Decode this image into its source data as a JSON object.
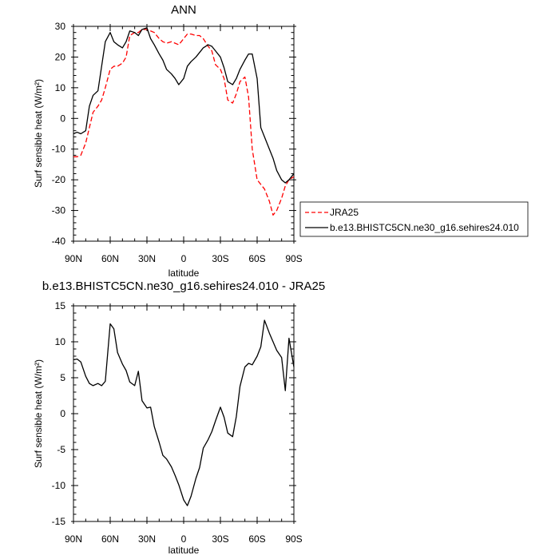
{
  "chart_data": [
    {
      "type": "line",
      "title": "ANN",
      "xlabel": "latitude",
      "ylabel": "Surf sensible heat (W/m²)",
      "xlim": [
        90,
        -90
      ],
      "ylim": [
        -40,
        30
      ],
      "xticks": [
        90,
        60,
        30,
        0,
        -30,
        -60,
        -90
      ],
      "xtick_labels": [
        "90N",
        "60N",
        "30N",
        "0",
        "30S",
        "60S",
        "90S"
      ],
      "yticks": [
        30,
        20,
        10,
        0,
        -10,
        -20,
        -30,
        -40
      ],
      "ytick_labels": [
        "30",
        "20",
        "10",
        "0",
        "-10",
        "-20",
        "-30",
        "-40"
      ],
      "grid": false,
      "legend": "right-outside",
      "series": [
        {
          "name": "JRA25",
          "color": "#ff0000",
          "dash": "dashed",
          "x": [
            90,
            87,
            84,
            80,
            77,
            74,
            70,
            67,
            64,
            60,
            57,
            54,
            50,
            47,
            44,
            40,
            37,
            34,
            30,
            27,
            24,
            20,
            17,
            14,
            10,
            7,
            4,
            0,
            -3,
            -6,
            -10,
            -13,
            -16,
            -20,
            -23,
            -26,
            -30,
            -33,
            -36,
            -40,
            -43,
            -46,
            -50,
            -53,
            -56,
            -60,
            -63,
            -66,
            -70,
            -73,
            -76,
            -80,
            -83,
            -86,
            -90
          ],
          "y": [
            -12.5,
            -12.5,
            -12,
            -8,
            -3,
            2,
            4,
            6,
            10,
            16,
            17,
            17,
            18,
            20,
            27,
            28,
            28,
            29,
            29,
            28.5,
            28,
            26,
            25,
            24.5,
            25,
            24.5,
            24,
            26,
            27.5,
            27.5,
            27,
            27,
            26,
            23.5,
            22,
            17.5,
            16,
            13,
            6,
            5,
            8,
            12,
            13.5,
            7,
            -10,
            -20,
            -21.5,
            -23,
            -27,
            -31.5,
            -30,
            -26,
            -22,
            -20,
            -19
          ]
        },
        {
          "name": "b.e13.BHISTC5CN.ne30_g16.sehires24.010",
          "color": "#000000",
          "dash": "solid",
          "x": [
            90,
            87,
            84,
            80,
            77,
            74,
            70,
            67,
            64,
            60,
            57,
            54,
            50,
            47,
            44,
            40,
            37,
            34,
            30,
            27,
            24,
            20,
            17,
            14,
            10,
            7,
            4,
            0,
            -3,
            -6,
            -10,
            -13,
            -16,
            -20,
            -23,
            -26,
            -30,
            -33,
            -36,
            -40,
            -43,
            -46,
            -50,
            -53,
            -56,
            -60,
            -63,
            -66,
            -70,
            -73,
            -76,
            -80,
            -83,
            -86,
            -90
          ],
          "y": [
            -5,
            -4.5,
            -5,
            -4,
            4,
            7.5,
            9,
            17,
            25,
            28,
            25,
            24,
            23,
            25,
            28.5,
            28,
            27,
            29,
            29.5,
            26,
            24,
            21,
            19,
            16,
            14.5,
            13,
            11,
            13,
            17,
            18.5,
            20,
            21.5,
            23,
            24,
            23.5,
            22,
            20,
            16.5,
            12,
            11,
            13,
            16,
            19,
            21,
            21,
            13,
            -3,
            -6,
            -10,
            -13,
            -17,
            -20,
            -21,
            -20,
            -18
          ]
        }
      ]
    },
    {
      "type": "line",
      "title": "b.e13.BHISTC5CN.ne30_g16.sehires24.010 - JRA25",
      "xlabel": "latitude",
      "ylabel": "Surf sensible heat (W/m²)",
      "xlim": [
        90,
        -90
      ],
      "ylim": [
        -15,
        15
      ],
      "xticks": [
        90,
        60,
        30,
        0,
        -30,
        -60,
        -90
      ],
      "xtick_labels": [
        "90N",
        "60N",
        "30N",
        "0",
        "30S",
        "60S",
        "90S"
      ],
      "yticks": [
        15,
        10,
        5,
        0,
        -5,
        -10,
        -15
      ],
      "ytick_labels": [
        "15",
        "10",
        "5",
        "0",
        "-5",
        "-10",
        "-15"
      ],
      "grid": false,
      "series": [
        {
          "color": "#000000",
          "dash": "solid",
          "x": [
            90,
            87,
            84,
            80,
            77,
            74,
            70,
            67,
            64,
            60,
            57,
            54,
            50,
            47,
            44,
            40,
            37,
            34,
            30,
            27,
            24,
            20,
            17,
            14,
            10,
            7,
            4,
            0,
            -3,
            -6,
            -10,
            -13,
            -16,
            -20,
            -23,
            -26,
            -30,
            -33,
            -36,
            -40,
            -43,
            -46,
            -50,
            -53,
            -56,
            -60,
            -63,
            -66,
            -70,
            -73,
            -76,
            -80,
            -83,
            -86,
            -90
          ],
          "y": [
            7.5,
            7.6,
            7.2,
            5.2,
            4.2,
            3.9,
            4.2,
            3.9,
            4.5,
            12.5,
            11.8,
            8.5,
            6.9,
            6,
            4.4,
            3.9,
            5.9,
            1.8,
            0.8,
            0.9,
            -1.8,
            -4,
            -5.8,
            -6.3,
            -7.4,
            -8.6,
            -9.9,
            -12,
            -12.8,
            -11.5,
            -9,
            -7.5,
            -4.8,
            -3.6,
            -2.5,
            -1,
            0.9,
            -0.5,
            -2.7,
            -3.2,
            -0.4,
            3.8,
            6.5,
            7,
            6.8,
            8,
            9.3,
            13,
            11.2,
            10,
            8.8,
            7.8,
            3.2,
            10.5,
            6.5
          ]
        }
      ]
    }
  ]
}
